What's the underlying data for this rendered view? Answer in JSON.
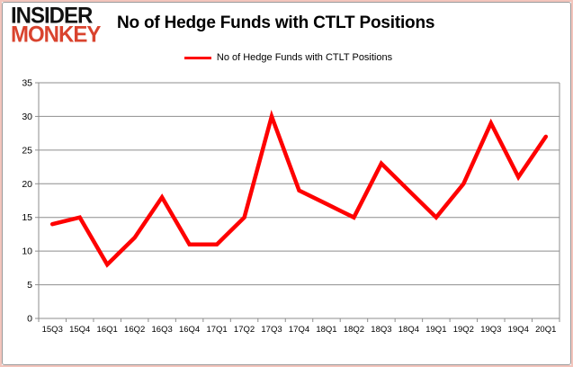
{
  "logo": {
    "line1": "INSIDER",
    "line2": "MONKEY"
  },
  "header": {
    "title": "No of Hedge Funds with CTLT Positions"
  },
  "legend": {
    "label": "No of Hedge Funds with CTLT Positions"
  },
  "colors": {
    "series_red": "#fe0000",
    "logo_red": "#d9432e",
    "gridline_gray": "#8e8e8e",
    "outer_border_pink": "#f3c5bc",
    "inner_border_gray": "#9b9b9b"
  },
  "chart_data": {
    "type": "line",
    "title": "No of Hedge Funds with CTLT Positions",
    "series_name": "No of Hedge Funds with CTLT Positions",
    "categories": [
      "15Q3",
      "15Q4",
      "16Q1",
      "16Q2",
      "16Q3",
      "16Q4",
      "17Q1",
      "17Q2",
      "17Q3",
      "17Q4",
      "18Q1",
      "18Q2",
      "18Q3",
      "18Q4",
      "19Q1",
      "19Q2",
      "19Q3",
      "19Q4",
      "20Q1"
    ],
    "values": [
      14,
      15,
      8,
      12,
      18,
      11,
      11,
      15,
      30,
      19,
      17,
      15,
      23,
      19,
      15,
      20,
      29,
      21,
      27
    ],
    "ylim": [
      0,
      35
    ],
    "ytick_step": 5,
    "grid": true,
    "legend_position": "top",
    "line_color": "#fe0000"
  }
}
